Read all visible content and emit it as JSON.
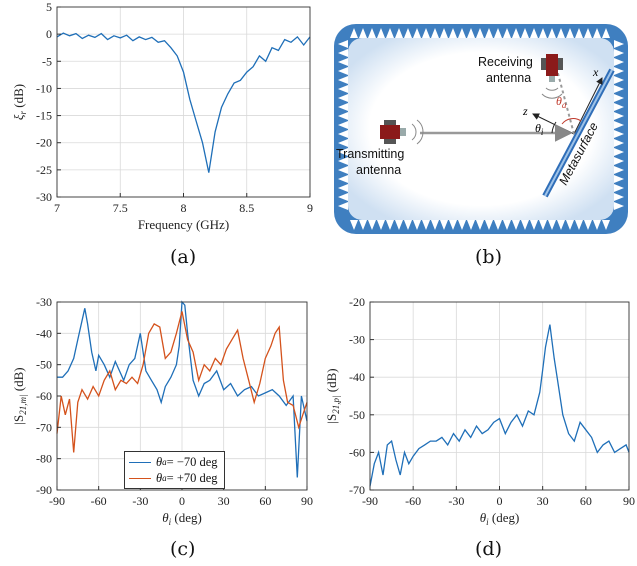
{
  "figure": {
    "captions": {
      "a": "(a)",
      "b": "(b)",
      "c": "(c)",
      "d": "(d)"
    }
  },
  "diagram": {
    "receiving_label": [
      "Receiving",
      "antenna"
    ],
    "transmitting_label": [
      "Transmitting",
      "antenna"
    ],
    "metasurface_label": "Metasurface",
    "axis_x": "x",
    "axis_z": "z",
    "theta_a": "θa",
    "theta_i": "θi",
    "colors": {
      "frame": "#3f7fc0",
      "metasurface": "#2f6eb8",
      "theta_a": "#c0392b",
      "antenna_body": "#8b1a1a"
    }
  },
  "colors": {
    "blue": "#1f6fb8",
    "orange": "#d4521c",
    "grid": "#d9d9d9",
    "axis": "#333333"
  },
  "chart_data": [
    {
      "id": "a",
      "type": "line",
      "xlabel": "Frequency (GHz)",
      "ylabel": "ξr (dB)",
      "xlim": [
        7,
        9
      ],
      "ylim": [
        -30,
        5
      ],
      "xticks": [
        7,
        7.5,
        8,
        8.5,
        9
      ],
      "xtick_labels": [
        "7",
        "7.5",
        "8",
        "8.5",
        "9"
      ],
      "yticks": [
        5,
        0,
        -5,
        -10,
        -15,
        -20,
        -25,
        -30
      ],
      "ytick_labels": [
        "5",
        "0",
        "-5",
        "-10",
        "-15",
        "-20",
        "-25",
        "-30"
      ],
      "grid": true,
      "series": [
        {
          "color": "#1f6fb8",
          "x": [
            7,
            7.05,
            7.1,
            7.15,
            7.2,
            7.25,
            7.3,
            7.35,
            7.4,
            7.45,
            7.5,
            7.55,
            7.6,
            7.65,
            7.7,
            7.75,
            7.8,
            7.85,
            7.9,
            7.95,
            8.0,
            8.05,
            8.1,
            8.15,
            8.2,
            8.25,
            8.3,
            8.35,
            8.4,
            8.45,
            8.5,
            8.55,
            8.6,
            8.65,
            8.7,
            8.75,
            8.8,
            8.85,
            8.9,
            8.95,
            9.0
          ],
          "y": [
            -0.5,
            0.2,
            -0.3,
            0.1,
            -0.8,
            -0.2,
            -0.6,
            0.1,
            -1.0,
            -0.3,
            -0.7,
            -0.2,
            -1.2,
            -0.5,
            -1.0,
            -0.6,
            -1.5,
            -1.2,
            -2.5,
            -4.0,
            -7.0,
            -12.0,
            -16.0,
            -20.0,
            -25.5,
            -18.0,
            -13.5,
            -11.0,
            -9.0,
            -8.5,
            -7.0,
            -6.0,
            -4.0,
            -5.0,
            -2.5,
            -3.0,
            -1.0,
            -1.5,
            -0.5,
            -2.0,
            -0.5
          ]
        }
      ]
    },
    {
      "id": "c",
      "type": "line",
      "xlabel": "θi (deg)",
      "ylabel": "|S21,m| (dB)",
      "xlim": [
        -90,
        90
      ],
      "ylim": [
        -90,
        -30
      ],
      "xticks": [
        -90,
        -60,
        -30,
        0,
        30,
        60,
        90
      ],
      "xtick_labels": [
        "-90",
        "-60",
        "-30",
        "0",
        "30",
        "60",
        "90"
      ],
      "yticks": [
        -30,
        -40,
        -50,
        -60,
        -70,
        -80,
        -90
      ],
      "ytick_labels": [
        "-30",
        "-40",
        "-50",
        "-60",
        "-70",
        "-80",
        "-90"
      ],
      "grid": true,
      "legend": {
        "position": "bottom-left",
        "entries": [
          {
            "label": "θa = −70 deg",
            "theta": "θ",
            "sub": "a",
            "rest": " = −70 deg"
          },
          {
            "label": "θa = +70 deg",
            "theta": "θ",
            "sub": "a",
            "rest": " = +70 deg"
          }
        ]
      },
      "series": [
        {
          "name": "θa = −70 deg",
          "color": "#1f6fb8",
          "x": [
            -90,
            -86,
            -82,
            -78,
            -75,
            -72,
            -70,
            -68,
            -65,
            -62,
            -60,
            -56,
            -52,
            -48,
            -45,
            -42,
            -38,
            -34,
            -30,
            -26,
            -22,
            -18,
            -15,
            -12,
            -8,
            -4,
            -2,
            0,
            2,
            4,
            8,
            12,
            16,
            20,
            25,
            30,
            35,
            40,
            45,
            50,
            55,
            60,
            65,
            70,
            75,
            80,
            83,
            86,
            90
          ],
          "y": [
            -54,
            -54,
            -52,
            -48,
            -42,
            -36,
            -32,
            -37,
            -46,
            -52,
            -47,
            -50,
            -54,
            -49,
            -52,
            -55,
            -50,
            -48,
            -40,
            -52,
            -55,
            -58,
            -62,
            -57,
            -54,
            -50,
            -44,
            -30,
            -31,
            -40,
            -55,
            -60,
            -56,
            -55,
            -52,
            -58,
            -56,
            -60,
            -58,
            -57,
            -60,
            -59,
            -58,
            -60,
            -63,
            -60,
            -86,
            -60,
            -68
          ]
        },
        {
          "name": "θa = +70 deg",
          "color": "#d4521c",
          "x": [
            -90,
            -87,
            -84,
            -81,
            -78,
            -75,
            -72,
            -68,
            -64,
            -60,
            -56,
            -52,
            -48,
            -44,
            -40,
            -36,
            -32,
            -28,
            -24,
            -20,
            -16,
            -12,
            -8,
            -4,
            0,
            4,
            8,
            12,
            16,
            20,
            24,
            28,
            32,
            36,
            40,
            44,
            48,
            52,
            56,
            60,
            64,
            67,
            70,
            73,
            76,
            80,
            84,
            87,
            90
          ],
          "y": [
            -72,
            -60,
            -66,
            -61,
            -78,
            -62,
            -58,
            -61,
            -57,
            -60,
            -55,
            -52,
            -58,
            -55,
            -56,
            -54,
            -56,
            -50,
            -40,
            -37,
            -38,
            -48,
            -46,
            -40,
            -33,
            -42,
            -46,
            -55,
            -50,
            -52,
            -48,
            -50,
            -45,
            -42,
            -39,
            -48,
            -55,
            -62,
            -56,
            -48,
            -44,
            -40,
            -38,
            -55,
            -62,
            -63,
            -70,
            -66,
            -62
          ]
        }
      ]
    },
    {
      "id": "d",
      "type": "line",
      "xlabel": "θi (deg)",
      "ylabel": "|S21,p| (dB)",
      "xlim": [
        -90,
        90
      ],
      "ylim": [
        -70,
        -20
      ],
      "xticks": [
        -90,
        -60,
        -30,
        0,
        30,
        60,
        90
      ],
      "xtick_labels": [
        "-90",
        "-60",
        "-30",
        "0",
        "30",
        "60",
        "90"
      ],
      "yticks": [
        -20,
        -30,
        -40,
        -50,
        -60,
        -70
      ],
      "ytick_labels": [
        "-20",
        "-30",
        "-40",
        "-50",
        "-60",
        "-70"
      ],
      "grid": true,
      "series": [
        {
          "color": "#1f6fb8",
          "x": [
            -90,
            -87,
            -84,
            -81,
            -78,
            -75,
            -72,
            -69,
            -66,
            -63,
            -60,
            -56,
            -52,
            -48,
            -44,
            -40,
            -36,
            -32,
            -28,
            -24,
            -20,
            -16,
            -12,
            -8,
            -4,
            0,
            4,
            8,
            12,
            16,
            20,
            24,
            28,
            30,
            32,
            34,
            35,
            36,
            38,
            40,
            44,
            48,
            52,
            56,
            60,
            64,
            68,
            72,
            76,
            80,
            84,
            88,
            90
          ],
          "y": [
            -69,
            -63,
            -60,
            -66,
            -58,
            -57,
            -62,
            -66,
            -60,
            -63,
            -61,
            -59,
            -58,
            -57,
            -57,
            -56,
            -58,
            -55,
            -57,
            -54,
            -56,
            -53,
            -55,
            -54,
            -52,
            -51,
            -55,
            -52,
            -50,
            -53,
            -49,
            -50,
            -44,
            -38,
            -32,
            -28,
            -26,
            -29,
            -35,
            -40,
            -50,
            -55,
            -57,
            -52,
            -54,
            -56,
            -60,
            -58,
            -57,
            -60,
            -59,
            -58,
            -60
          ]
        }
      ]
    }
  ]
}
